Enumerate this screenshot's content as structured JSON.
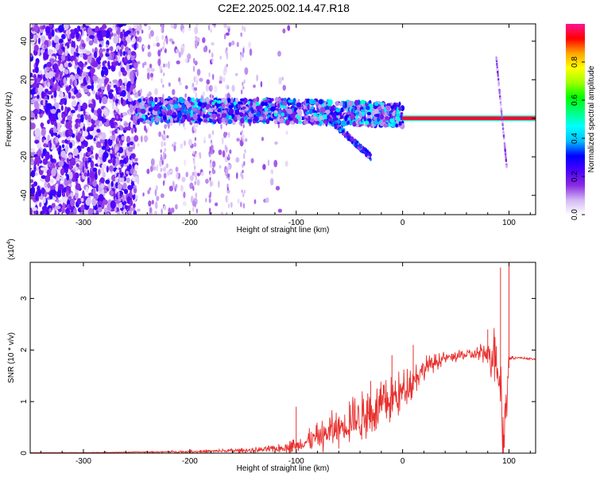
{
  "title": "C2E2.2025.002.14.47.R18",
  "chart_data": [
    {
      "type": "heatmap",
      "title": "C2E2.2025.002.14.47.R18",
      "xlabel": "Height of straight line (km)",
      "ylabel": "Frequency (Hz)",
      "xlim": [
        -350,
        125
      ],
      "ylim": [
        -50,
        49
      ],
      "x_ticks": [
        -300,
        -200,
        -100,
        0,
        100
      ],
      "x_tick_labels": [
        "-300",
        "-200",
        "-100",
        "0",
        "100"
      ],
      "y_ticks": [
        -40,
        -20,
        0,
        20,
        40
      ],
      "y_tick_labels": [
        "-40",
        "-20",
        "0",
        "20",
        "40"
      ],
      "grid": false,
      "colorbar": {
        "label": "Normalized spectral amplitude",
        "range": [
          0,
          1
        ],
        "ticks": [
          0.0,
          0.2,
          0.4,
          0.6,
          0.8
        ],
        "tick_labels": [
          "0.0",
          "0.2",
          "0.4",
          "0.6",
          "0.8"
        ],
        "colormap": [
          "#ffffff",
          "#d2b6f4",
          "#8a2be2",
          "#4b00ff",
          "#0000ff",
          "#00bfff",
          "#00ffff",
          "#00ff7f",
          "#00ff00",
          "#a0ff00",
          "#ffff00",
          "#ffa500",
          "#ff0000",
          "#ff1493"
        ]
      },
      "features": {
        "noise_region_x": [
          -350,
          -250
        ],
        "broadband_structure_x": [
          -250,
          0
        ],
        "broadband_structure_freq_hz": [
          0,
          10
        ],
        "carrier_line_x": [
          0,
          125
        ],
        "carrier_line_freq_hz": 0,
        "carrier_line_amplitude": 0.95,
        "dispersive_tail_x": [
          -70,
          -30
        ],
        "dispersive_tail_freq_hz": [
          0,
          -20
        ],
        "streak_x": [
          88,
          98
        ],
        "streak_freq_hz": [
          32,
          -26
        ]
      }
    },
    {
      "type": "line",
      "title": "",
      "xlabel": "Height of straight line (km)",
      "ylabel": "SNR (10 * v/v)",
      "y_scale_label": "(x10",
      "y_scale_exponent": "4",
      "xlim": [
        -350,
        125
      ],
      "ylim": [
        0,
        3.7
      ],
      "x_ticks": [
        -300,
        -200,
        -100,
        0,
        100
      ],
      "x_tick_labels": [
        "-300",
        "-200",
        "-100",
        "0",
        "100"
      ],
      "y_ticks": [
        0,
        1,
        2,
        3
      ],
      "y_tick_labels": [
        "0",
        "1",
        "2",
        "3"
      ],
      "grid": false,
      "series": [
        {
          "color": "#e8302d",
          "x": [
            -350,
            -300,
            -250,
            -200,
            -150,
            -120,
            -100,
            -80,
            -60,
            -40,
            -20,
            0,
            20,
            40,
            60,
            80,
            90,
            95,
            100,
            110,
            125
          ],
          "y": [
            0.01,
            0.01,
            0.02,
            0.03,
            0.05,
            0.08,
            0.15,
            0.3,
            0.5,
            0.7,
            0.9,
            1.2,
            1.65,
            1.85,
            1.9,
            1.95,
            1.9,
            0.15,
            1.85,
            1.85,
            1.82
          ],
          "fluctuation": [
            0.002,
            0.004,
            0.01,
            0.03,
            0.05,
            0.08,
            0.15,
            0.3,
            0.45,
            0.5,
            0.5,
            0.45,
            0.25,
            0.12,
            0.12,
            0.25,
            1.0,
            1.2,
            0.04,
            0.02,
            0.02
          ],
          "peaks": [
            {
              "x": -100,
              "y": 0.9
            },
            {
              "x": -50,
              "y": 1.0
            },
            {
              "x": -30,
              "y": 1.4
            },
            {
              "x": -10,
              "y": 1.9
            },
            {
              "x": 10,
              "y": 2.1
            },
            {
              "x": 80,
              "y": 2.4
            },
            {
              "x": 92,
              "y": 3.6
            },
            {
              "x": 100,
              "y": 3.8
            }
          ]
        }
      ]
    }
  ]
}
